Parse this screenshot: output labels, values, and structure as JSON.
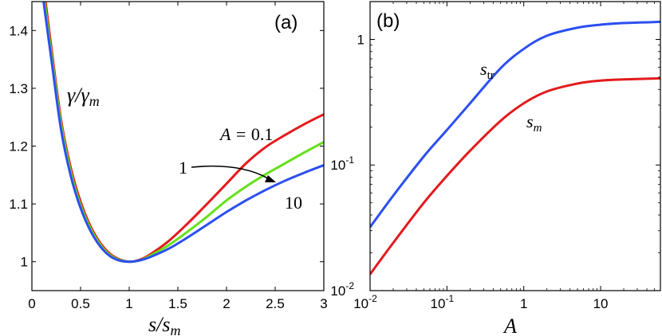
{
  "chart_data": [
    {
      "panel": "(a)",
      "type": "line",
      "title": "",
      "xlabel": "s/s_m",
      "ylabel": "γ/γ_m",
      "xlim": [
        0,
        3
      ],
      "ylim": [
        0.95,
        1.45
      ],
      "x_tick_labels": [
        "0",
        "0.5",
        "1",
        "1.5",
        "2",
        "2.5",
        "3"
      ],
      "x_ticks": [
        0,
        0.5,
        1,
        1.5,
        2,
        2.5,
        3
      ],
      "y_tick_labels": [
        "1",
        "1.1",
        "1.2",
        "1.3",
        "1.4"
      ],
      "y_ticks": [
        1.0,
        1.1,
        1.2,
        1.3,
        1.4
      ],
      "inner_label_var": "γ/γ",
      "inner_label_sub": "m",
      "annotations": {
        "a01_prefix": "A = ",
        "a01_value": "0.1",
        "a1": "1",
        "a10": "10"
      },
      "series": [
        {
          "name": "A = 0.1",
          "color": "#e31a1c",
          "x": [
            0.14,
            0.2,
            0.3,
            0.4,
            0.5,
            0.6,
            0.7,
            0.8,
            0.9,
            1.0,
            1.1,
            1.2,
            1.4,
            1.6,
            1.8,
            2.0,
            2.2,
            2.4,
            2.6,
            2.8,
            3.0
          ],
          "y": [
            1.45,
            1.37,
            1.245,
            1.162,
            1.104,
            1.062,
            1.033,
            1.014,
            1.004,
            1.0,
            1.003,
            1.011,
            1.035,
            1.066,
            1.1,
            1.135,
            1.17,
            1.198,
            1.219,
            1.238,
            1.255
          ]
        },
        {
          "name": "A = 1",
          "color": "#66e01a",
          "x": [
            0.13,
            0.2,
            0.3,
            0.4,
            0.5,
            0.6,
            0.7,
            0.8,
            0.9,
            1.0,
            1.1,
            1.2,
            1.4,
            1.6,
            1.8,
            2.0,
            2.2,
            2.4,
            2.6,
            2.8,
            3.0
          ],
          "y": [
            1.45,
            1.36,
            1.238,
            1.155,
            1.098,
            1.058,
            1.03,
            1.012,
            1.003,
            1.0,
            1.002,
            1.009,
            1.028,
            1.052,
            1.078,
            1.106,
            1.13,
            1.151,
            1.17,
            1.189,
            1.207
          ]
        },
        {
          "name": "A = 10",
          "color": "#2b4ff0",
          "x": [
            0.12,
            0.2,
            0.3,
            0.4,
            0.5,
            0.6,
            0.7,
            0.8,
            0.9,
            1.0,
            1.1,
            1.2,
            1.4,
            1.6,
            1.8,
            2.0,
            2.2,
            2.4,
            2.6,
            2.8,
            3.0
          ],
          "y": [
            1.45,
            1.35,
            1.228,
            1.148,
            1.093,
            1.054,
            1.027,
            1.01,
            1.002,
            1.0,
            1.002,
            1.007,
            1.022,
            1.042,
            1.064,
            1.086,
            1.106,
            1.124,
            1.14,
            1.154,
            1.167
          ]
        }
      ]
    },
    {
      "panel": "(b)",
      "type": "line",
      "scale": "log-log",
      "title": "",
      "xlabel": "A",
      "ylabel": "",
      "xlim": [
        0.01,
        60
      ],
      "ylim": [
        0.01,
        2
      ],
      "x_tick_labels": [
        "10",
        "-2",
        "10",
        "-1",
        "1",
        "10"
      ],
      "x_ticks": [
        0.01,
        0.1,
        1,
        10
      ],
      "y_tick_labels": [
        "10",
        "-2",
        "10",
        "-1",
        "1"
      ],
      "y_ticks": [
        0.01,
        0.1,
        1
      ],
      "series": [
        {
          "name": "s_tr",
          "label_var": "s",
          "label_sub": "tr",
          "color": "#2b4ff0",
          "x": [
            0.01,
            0.02,
            0.05,
            0.1,
            0.2,
            0.5,
            1,
            2,
            5,
            10,
            20,
            60
          ],
          "y": [
            0.032,
            0.057,
            0.117,
            0.19,
            0.31,
            0.59,
            0.84,
            1.07,
            1.24,
            1.31,
            1.35,
            1.38
          ]
        },
        {
          "name": "s_m",
          "label_var": "s",
          "label_sub": "m",
          "color": "#e31a1c",
          "x": [
            0.01,
            0.02,
            0.05,
            0.1,
            0.2,
            0.5,
            1,
            2,
            5,
            10,
            20,
            60
          ],
          "y": [
            0.0135,
            0.024,
            0.05,
            0.082,
            0.13,
            0.225,
            0.31,
            0.385,
            0.445,
            0.47,
            0.48,
            0.49
          ]
        }
      ]
    }
  ]
}
